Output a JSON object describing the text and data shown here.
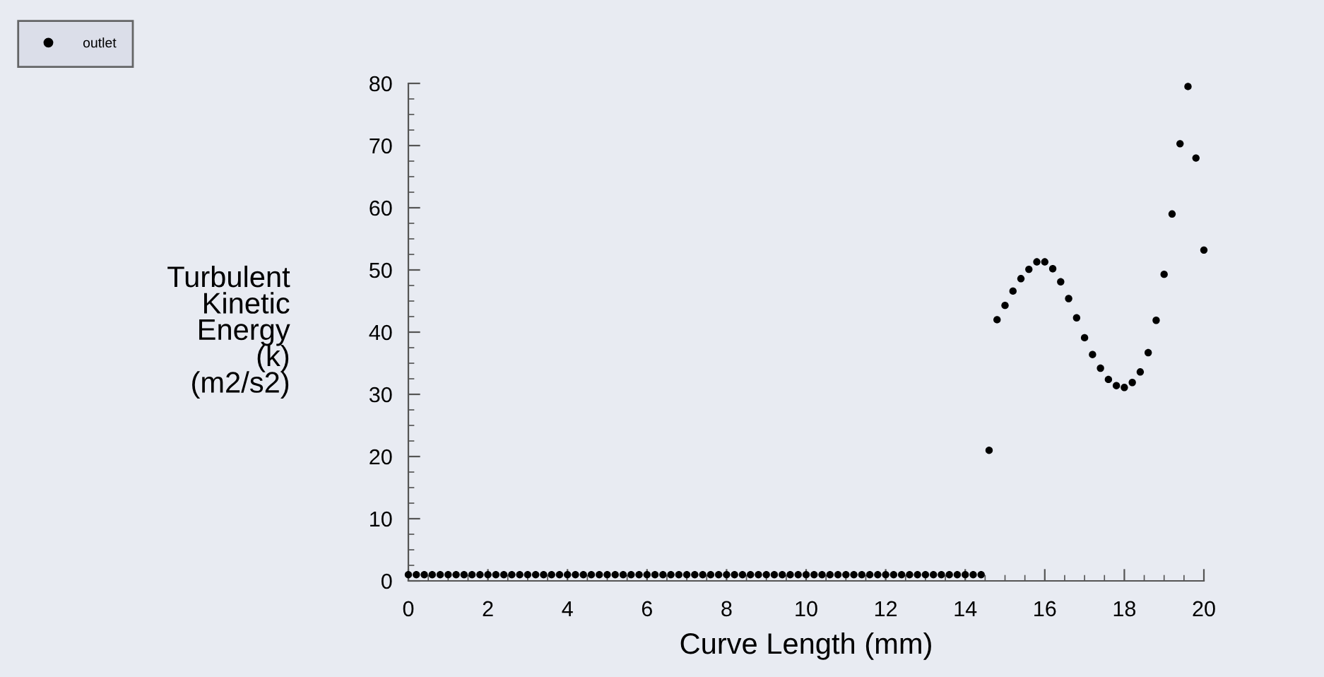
{
  "chart_data": {
    "type": "scatter",
    "xlabel": "Curve Length (mm)",
    "ylabel": "Turbulent\nKinetic\nEnergy\n(k)\n(m2/s2)",
    "xlim": [
      0,
      20
    ],
    "ylim": [
      0,
      80
    ],
    "xticks": [
      0,
      2,
      4,
      6,
      8,
      10,
      12,
      14,
      16,
      18,
      20
    ],
    "yticks": [
      0,
      10,
      20,
      30,
      40,
      50,
      60,
      70,
      80
    ],
    "grid": false,
    "legend": "top left",
    "marker": "circle",
    "series": [
      {
        "name": "outlet",
        "color": "#000000",
        "x": [
          0,
          0.2,
          0.4,
          0.6,
          0.8,
          1,
          1.2,
          1.4,
          1.6,
          1.8,
          2,
          2.2,
          2.4,
          2.6,
          2.8,
          3,
          3.2,
          3.4,
          3.6,
          3.8,
          4,
          4.2,
          4.4,
          4.6,
          4.8,
          5,
          5.2,
          5.4,
          5.6,
          5.8,
          6,
          6.2,
          6.4,
          6.6,
          6.8,
          7,
          7.2,
          7.4,
          7.6,
          7.8,
          8,
          8.2,
          8.4,
          8.6,
          8.8,
          9,
          9.2,
          9.4,
          9.6,
          9.8,
          10,
          10.2,
          10.4,
          10.6,
          10.8,
          11,
          11.2,
          11.4,
          11.6,
          11.8,
          12,
          12.2,
          12.4,
          12.6,
          12.8,
          13,
          13.2,
          13.4,
          13.6,
          13.8,
          14,
          14.2,
          14.4,
          14.6,
          14.8,
          15,
          15.2,
          15.4,
          15.6,
          15.8,
          16,
          16.2,
          16.4,
          16.6,
          16.8,
          17,
          17.2,
          17.4,
          17.6,
          17.8,
          18,
          18.2,
          18.4,
          18.6,
          18.8,
          19,
          19.2,
          19.4,
          19.6,
          19.8,
          20
        ],
        "values": [
          1,
          1,
          1,
          1,
          1,
          1,
          1,
          1,
          1,
          1,
          1,
          1,
          1,
          1,
          1,
          1,
          1,
          1,
          1,
          1,
          1,
          1,
          1,
          1,
          1,
          1,
          1,
          1,
          1,
          1,
          1,
          1,
          1,
          1,
          1,
          1,
          1,
          1,
          1,
          1,
          1,
          1,
          1,
          1,
          1,
          1,
          1,
          1,
          1,
          1,
          1,
          1,
          1,
          1,
          1,
          1,
          1,
          1,
          1,
          1,
          1,
          1,
          1,
          1,
          1,
          1,
          1,
          1,
          1,
          1,
          1,
          1,
          1,
          21,
          42,
          44.3,
          46.6,
          48.6,
          50.1,
          51.3,
          51.3,
          50.2,
          48.1,
          45.4,
          42.3,
          39.1,
          36.4,
          34.2,
          32.4,
          31.4,
          31.1,
          31.9,
          33.6,
          36.7,
          41.9,
          49.3,
          59,
          70.3,
          79.5,
          68,
          53.2
        ]
      }
    ]
  }
}
